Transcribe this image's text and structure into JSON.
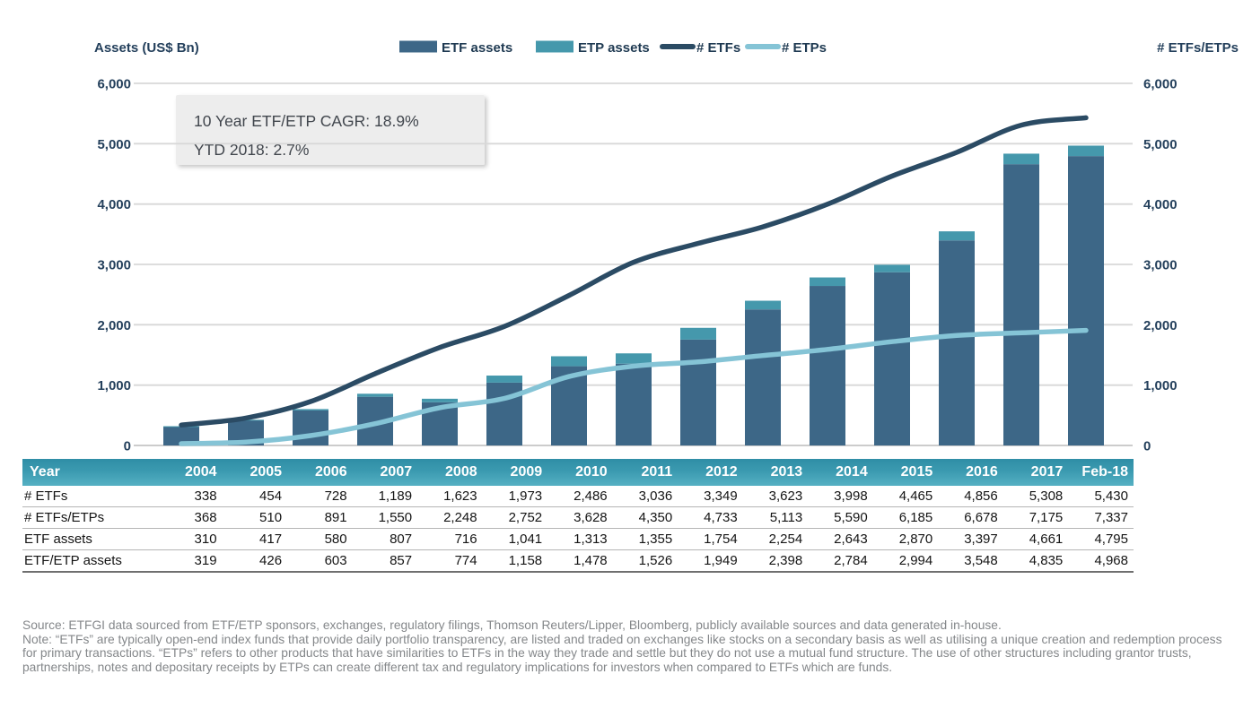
{
  "chart": {
    "left_axis_title": "Assets (US$ Bn)",
    "right_axis_title": "# ETFs/ETPs"
  },
  "chart_data": {
    "type": "combo-stacked-bar-line",
    "categories": [
      "2004",
      "2005",
      "2006",
      "2007",
      "2008",
      "2009",
      "2010",
      "2011",
      "2012",
      "2013",
      "2014",
      "2015",
      "2016",
      "2017",
      "Feb-18"
    ],
    "series": [
      {
        "name": "ETF assets",
        "type": "bar",
        "role": "stack-base",
        "color": "#3d6787",
        "values": [
          310,
          417,
          580,
          807,
          716,
          1041,
          1313,
          1355,
          1754,
          2254,
          2643,
          2870,
          3397,
          4661,
          4795
        ]
      },
      {
        "name": "ETP assets",
        "type": "bar",
        "role": "stack-top",
        "color": "#4598ac",
        "values": [
          9,
          9,
          23,
          50,
          58,
          117,
          165,
          171,
          195,
          144,
          141,
          124,
          151,
          174,
          173
        ]
      },
      {
        "name": "# ETFs",
        "type": "line",
        "color": "#2b4b64",
        "values": [
          338,
          454,
          728,
          1189,
          1623,
          1973,
          2486,
          3036,
          3349,
          3623,
          3998,
          4465,
          4856,
          5308,
          5430
        ]
      },
      {
        "name": "# ETPs",
        "type": "line",
        "color": "#85c4d6",
        "values": [
          30,
          56,
          163,
          361,
          625,
          779,
          1142,
          1314,
          1384,
          1490,
          1592,
          1720,
          1822,
          1867,
          1907
        ]
      }
    ],
    "left_axis": {
      "title": "Assets (US$ Bn)",
      "min": 0,
      "max": 6000,
      "step": 1000
    },
    "right_axis": {
      "title": "# ETFs/ETPs",
      "min": 0,
      "max": 6000,
      "step": 1000
    },
    "gridlines": true,
    "legend_position": "top",
    "annotations": [
      "10 Year ETF/ETP CAGR: 18.9%",
      "YTD 2018: 2.7%"
    ]
  },
  "table": {
    "header": [
      "Year",
      "2004",
      "2005",
      "2006",
      "2007",
      "2008",
      "2009",
      "2010",
      "2011",
      "2012",
      "2013",
      "2014",
      "2015",
      "2016",
      "2017",
      "Feb-18"
    ],
    "rows": [
      {
        "label": "# ETFs",
        "values": [
          "338",
          "454",
          "728",
          "1,189",
          "1,623",
          "1,973",
          "2,486",
          "3,036",
          "3,349",
          "3,623",
          "3,998",
          "4,465",
          "4,856",
          "5,308",
          "5,430"
        ]
      },
      {
        "label": "# ETFs/ETPs",
        "values": [
          "368",
          "510",
          "891",
          "1,550",
          "2,248",
          "2,752",
          "3,628",
          "4,350",
          "4,733",
          "5,113",
          "5,590",
          "6,185",
          "6,678",
          "7,175",
          "7,337"
        ]
      },
      {
        "label": "ETF assets",
        "values": [
          "310",
          "417",
          "580",
          "807",
          "716",
          "1,041",
          "1,313",
          "1,355",
          "1,754",
          "2,254",
          "2,643",
          "2,870",
          "3,397",
          "4,661",
          "4,795"
        ]
      },
      {
        "label": "ETF/ETP assets",
        "values": [
          "319",
          "426",
          "603",
          "857",
          "774",
          "1,158",
          "1,478",
          "1,526",
          "1,949",
          "2,398",
          "2,784",
          "2,994",
          "3,548",
          "4,835",
          "4,968"
        ]
      }
    ]
  },
  "footnote": {
    "source": "Source: ETFGI data sourced from ETF/ETP sponsors, exchanges, regulatory filings, Thomson Reuters/Lipper, Bloomberg, publicly available sources and data generated in-house.",
    "note": "Note: “ETFs” are typically open-end index funds that provide daily portfolio transparency, are listed and traded on exchanges like stocks on a secondary basis as well as utilising a unique creation and redemption process for primary transactions. “ETPs” refers to other products that have similarities to ETFs in the way they trade and settle but they do not use a mutual fund structure. The use of other structures including grantor trusts, partnerships, notes and depositary receipts by ETPs can create different tax and regulatory implications for investors when compared to ETFs which are funds."
  },
  "colors": {
    "axis_text": "#24405c",
    "grid": "#d8d8d8",
    "zero_line": "#c4c4c4",
    "annotation_bg": "#ededed",
    "table_header_top": "#2f8ea6",
    "table_header_bottom": "#55b0c3"
  }
}
